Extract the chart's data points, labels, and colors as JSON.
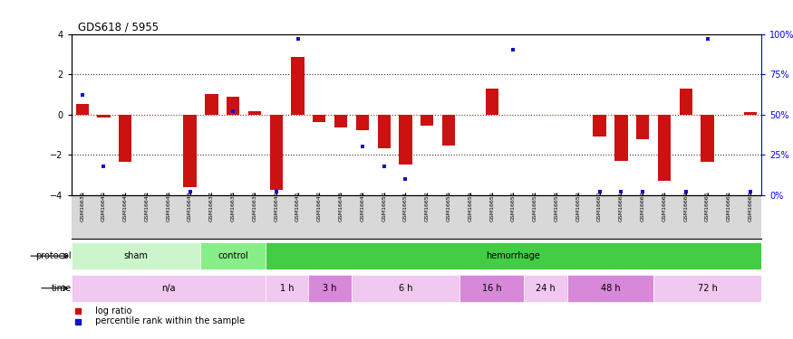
{
  "title": "GDS618 / 5955",
  "samples": [
    "GSM16636",
    "GSM16640",
    "GSM16641",
    "GSM16642",
    "GSM16643",
    "GSM16644",
    "GSM16637",
    "GSM16638",
    "GSM16639",
    "GSM16645",
    "GSM16646",
    "GSM16647",
    "GSM16648",
    "GSM16649",
    "GSM16650",
    "GSM16651",
    "GSM16652",
    "GSM16653",
    "GSM16654",
    "GSM16655",
    "GSM16656",
    "GSM16657",
    "GSM16658",
    "GSM16659",
    "GSM16660",
    "GSM16661",
    "GSM16662",
    "GSM16663",
    "GSM16664",
    "GSM16666",
    "GSM16667",
    "GSM16668"
  ],
  "log_ratio": [
    0.5,
    -0.15,
    -2.35,
    0.0,
    0.0,
    -3.6,
    1.0,
    0.9,
    0.15,
    -3.75,
    2.85,
    -0.4,
    -0.65,
    -0.8,
    -1.7,
    -2.5,
    -0.55,
    -1.55,
    0.0,
    1.3,
    0.0,
    0.0,
    0.0,
    0.0,
    -1.1,
    -2.3,
    -1.25,
    -3.3,
    1.3,
    -2.35,
    0.0,
    0.1
  ],
  "percentile": [
    62,
    18,
    null,
    null,
    null,
    2,
    null,
    52,
    null,
    2,
    97,
    null,
    null,
    30,
    18,
    10,
    null,
    null,
    null,
    null,
    90,
    null,
    null,
    null,
    2,
    2,
    2,
    null,
    2,
    97,
    null,
    2
  ],
  "protocol_groups": [
    {
      "label": "sham",
      "start": 0,
      "end": 6,
      "color": "#ccf5cc"
    },
    {
      "label": "control",
      "start": 6,
      "end": 9,
      "color": "#88ee88"
    },
    {
      "label": "hemorrhage",
      "start": 9,
      "end": 32,
      "color": "#44cc44"
    }
  ],
  "time_groups": [
    {
      "label": "n/a",
      "start": 0,
      "end": 9,
      "color": "#f0c8f0"
    },
    {
      "label": "1 h",
      "start": 9,
      "end": 11,
      "color": "#f0c8f0"
    },
    {
      "label": "3 h",
      "start": 11,
      "end": 13,
      "color": "#d888d8"
    },
    {
      "label": "6 h",
      "start": 13,
      "end": 18,
      "color": "#f0c8f0"
    },
    {
      "label": "16 h",
      "start": 18,
      "end": 21,
      "color": "#d888d8"
    },
    {
      "label": "24 h",
      "start": 21,
      "end": 23,
      "color": "#f0c8f0"
    },
    {
      "label": "48 h",
      "start": 23,
      "end": 27,
      "color": "#d888d8"
    },
    {
      "label": "72 h",
      "start": 27,
      "end": 32,
      "color": "#f0c8f0"
    }
  ],
  "ylim": [
    -4,
    4
  ],
  "yticks": [
    -4,
    -2,
    0,
    2,
    4
  ],
  "bar_color": "#cc1111",
  "dot_color": "#1111cc",
  "hline0_color": "#cc1111",
  "hline_color": "#333333",
  "right_tick_labels": [
    "0%",
    "25%",
    "50%",
    "75%",
    "100%"
  ],
  "right_tick_positions": [
    -4,
    -2,
    0,
    2,
    4
  ]
}
